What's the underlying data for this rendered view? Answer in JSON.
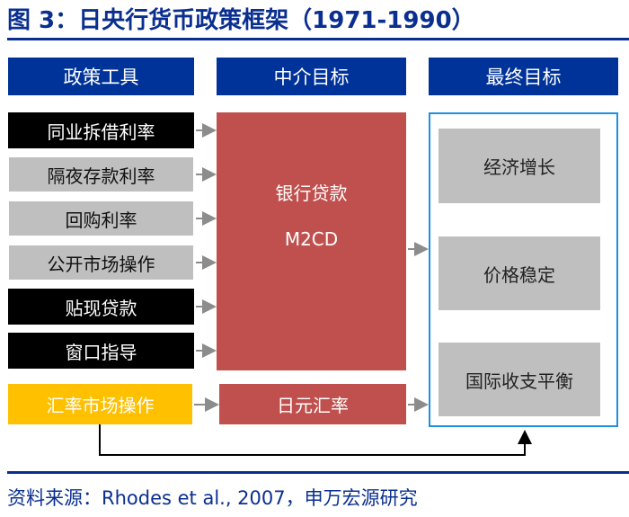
{
  "title": "图 3：日央行货币政策框架（1971-1990）",
  "headers": {
    "tools": "政策工具",
    "intermediate": "中介目标",
    "final": "最终目标"
  },
  "tools": [
    "同业拆借利率",
    "隔夜存款利率",
    "回购利率",
    "公开市场操作",
    "贴现贷款",
    "窗口指导"
  ],
  "fx_tool": "汇率市场操作",
  "intermediate": {
    "main": "银行贷款",
    "sub": "M2CD",
    "fx": "日元汇率"
  },
  "final": [
    "经济增长",
    "价格稳定",
    "国际收支平衡"
  ],
  "source": "资料来源：Rhodes et al., 2007，申万宏源研究",
  "colors": {
    "header": "#003399",
    "red": "#c0504d",
    "yellow": "#ffc000",
    "gray": "#bfbfbf",
    "black": "#000000"
  }
}
